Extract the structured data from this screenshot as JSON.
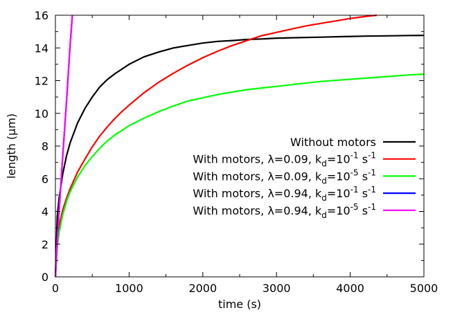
{
  "chart_data": {
    "type": "line",
    "xlabel": "time (s)",
    "ylabel": "length (µm)",
    "xlim": [
      0,
      5000
    ],
    "ylim": [
      0,
      16
    ],
    "x_ticks": [
      "0",
      "1000",
      "2000",
      "3000",
      "4000",
      "5000"
    ],
    "y_ticks": [
      "0",
      "2",
      "4",
      "6",
      "8",
      "10",
      "12",
      "14",
      "16"
    ],
    "grid": false,
    "legend_position": "center-right",
    "series": [
      {
        "name": "Without motors",
        "legend": {
          "pre": "Without motors",
          "lambda": "",
          "sub": "",
          "exp": "",
          "post": ""
        },
        "color": "#000000",
        "x": [
          0,
          25,
          50,
          100,
          150,
          200,
          300,
          400,
          500,
          600,
          700,
          800,
          900,
          1000,
          1200,
          1400,
          1600,
          1800,
          2000,
          2200,
          2400,
          2600,
          2800,
          3000,
          3300,
          3600,
          3900,
          4200,
          4500,
          4800,
          5000
        ],
        "y": [
          0,
          3.7,
          4.8,
          6.3,
          7.4,
          8.2,
          9.4,
          10.3,
          11.0,
          11.6,
          12.05,
          12.4,
          12.7,
          13.0,
          13.45,
          13.75,
          14.0,
          14.15,
          14.3,
          14.4,
          14.45,
          14.52,
          14.55,
          14.6,
          14.63,
          14.66,
          14.69,
          14.72,
          14.74,
          14.76,
          14.77
        ]
      },
      {
        "name": "With motors, λ=0.09, k_d=10^-1 s^-1",
        "legend": {
          "pre": "With motors, ",
          "lambda": "λ=0.09, k",
          "sub": "d",
          "exp": "-1",
          "post": "=10"
        },
        "color": "#ff0000",
        "x": [
          0,
          25,
          50,
          100,
          150,
          200,
          300,
          400,
          500,
          600,
          700,
          800,
          900,
          1000,
          1200,
          1400,
          1600,
          1800,
          2000,
          2200,
          2400,
          2600,
          2800,
          3000,
          3200,
          3400,
          3600,
          3800,
          4000,
          4200,
          4360
        ],
        "y": [
          0,
          2.4,
          3.1,
          4.1,
          4.8,
          5.4,
          6.4,
          7.2,
          7.95,
          8.6,
          9.15,
          9.65,
          10.1,
          10.5,
          11.25,
          11.9,
          12.45,
          12.95,
          13.4,
          13.8,
          14.15,
          14.45,
          14.75,
          14.95,
          15.15,
          15.35,
          15.5,
          15.65,
          15.8,
          15.92,
          16.0
        ]
      },
      {
        "name": "With motors, λ=0.09, k_d=10^-5 s^-1",
        "legend": {
          "pre": "With motors, ",
          "lambda": "λ=0.09, k",
          "sub": "d",
          "exp": "-5",
          "post": "=10"
        },
        "color": "#00ff00",
        "x": [
          0,
          25,
          50,
          100,
          150,
          200,
          300,
          400,
          500,
          600,
          700,
          800,
          900,
          1000,
          1200,
          1400,
          1600,
          1800,
          2000,
          2200,
          2400,
          2600,
          2800,
          3000,
          3300,
          3600,
          3900,
          4200,
          4500,
          4800,
          5000
        ],
        "y": [
          0,
          1.9,
          2.7,
          3.8,
          4.6,
          5.2,
          6.1,
          6.8,
          7.35,
          7.85,
          8.3,
          8.65,
          8.95,
          9.25,
          9.7,
          10.1,
          10.45,
          10.75,
          10.95,
          11.15,
          11.3,
          11.45,
          11.55,
          11.65,
          11.8,
          11.95,
          12.05,
          12.15,
          12.25,
          12.35,
          12.4
        ]
      },
      {
        "name": "With motors, λ=0.94, k_d=10^-1 s^-1",
        "legend": {
          "pre": "With motors, ",
          "lambda": "λ=0.94, k",
          "sub": "d",
          "exp": "-1",
          "post": "=10"
        },
        "color": "#0000ff",
        "x": [
          0,
          20,
          50,
          100,
          150,
          200,
          230
        ],
        "y": [
          0,
          1.8,
          4.0,
          7.4,
          10.7,
          14.2,
          16.0
        ]
      },
      {
        "name": "With motors, λ=0.94, k_d=10^-5 s^-1",
        "legend": {
          "pre": "With motors, ",
          "lambda": "λ=0.94, k",
          "sub": "d",
          "exp": "-5",
          "post": "=10"
        },
        "color": "#ff00ff",
        "x": [
          0,
          20,
          50,
          100,
          150,
          200,
          230
        ],
        "y": [
          0,
          1.8,
          4.0,
          7.4,
          10.7,
          14.2,
          16.0
        ]
      }
    ]
  }
}
